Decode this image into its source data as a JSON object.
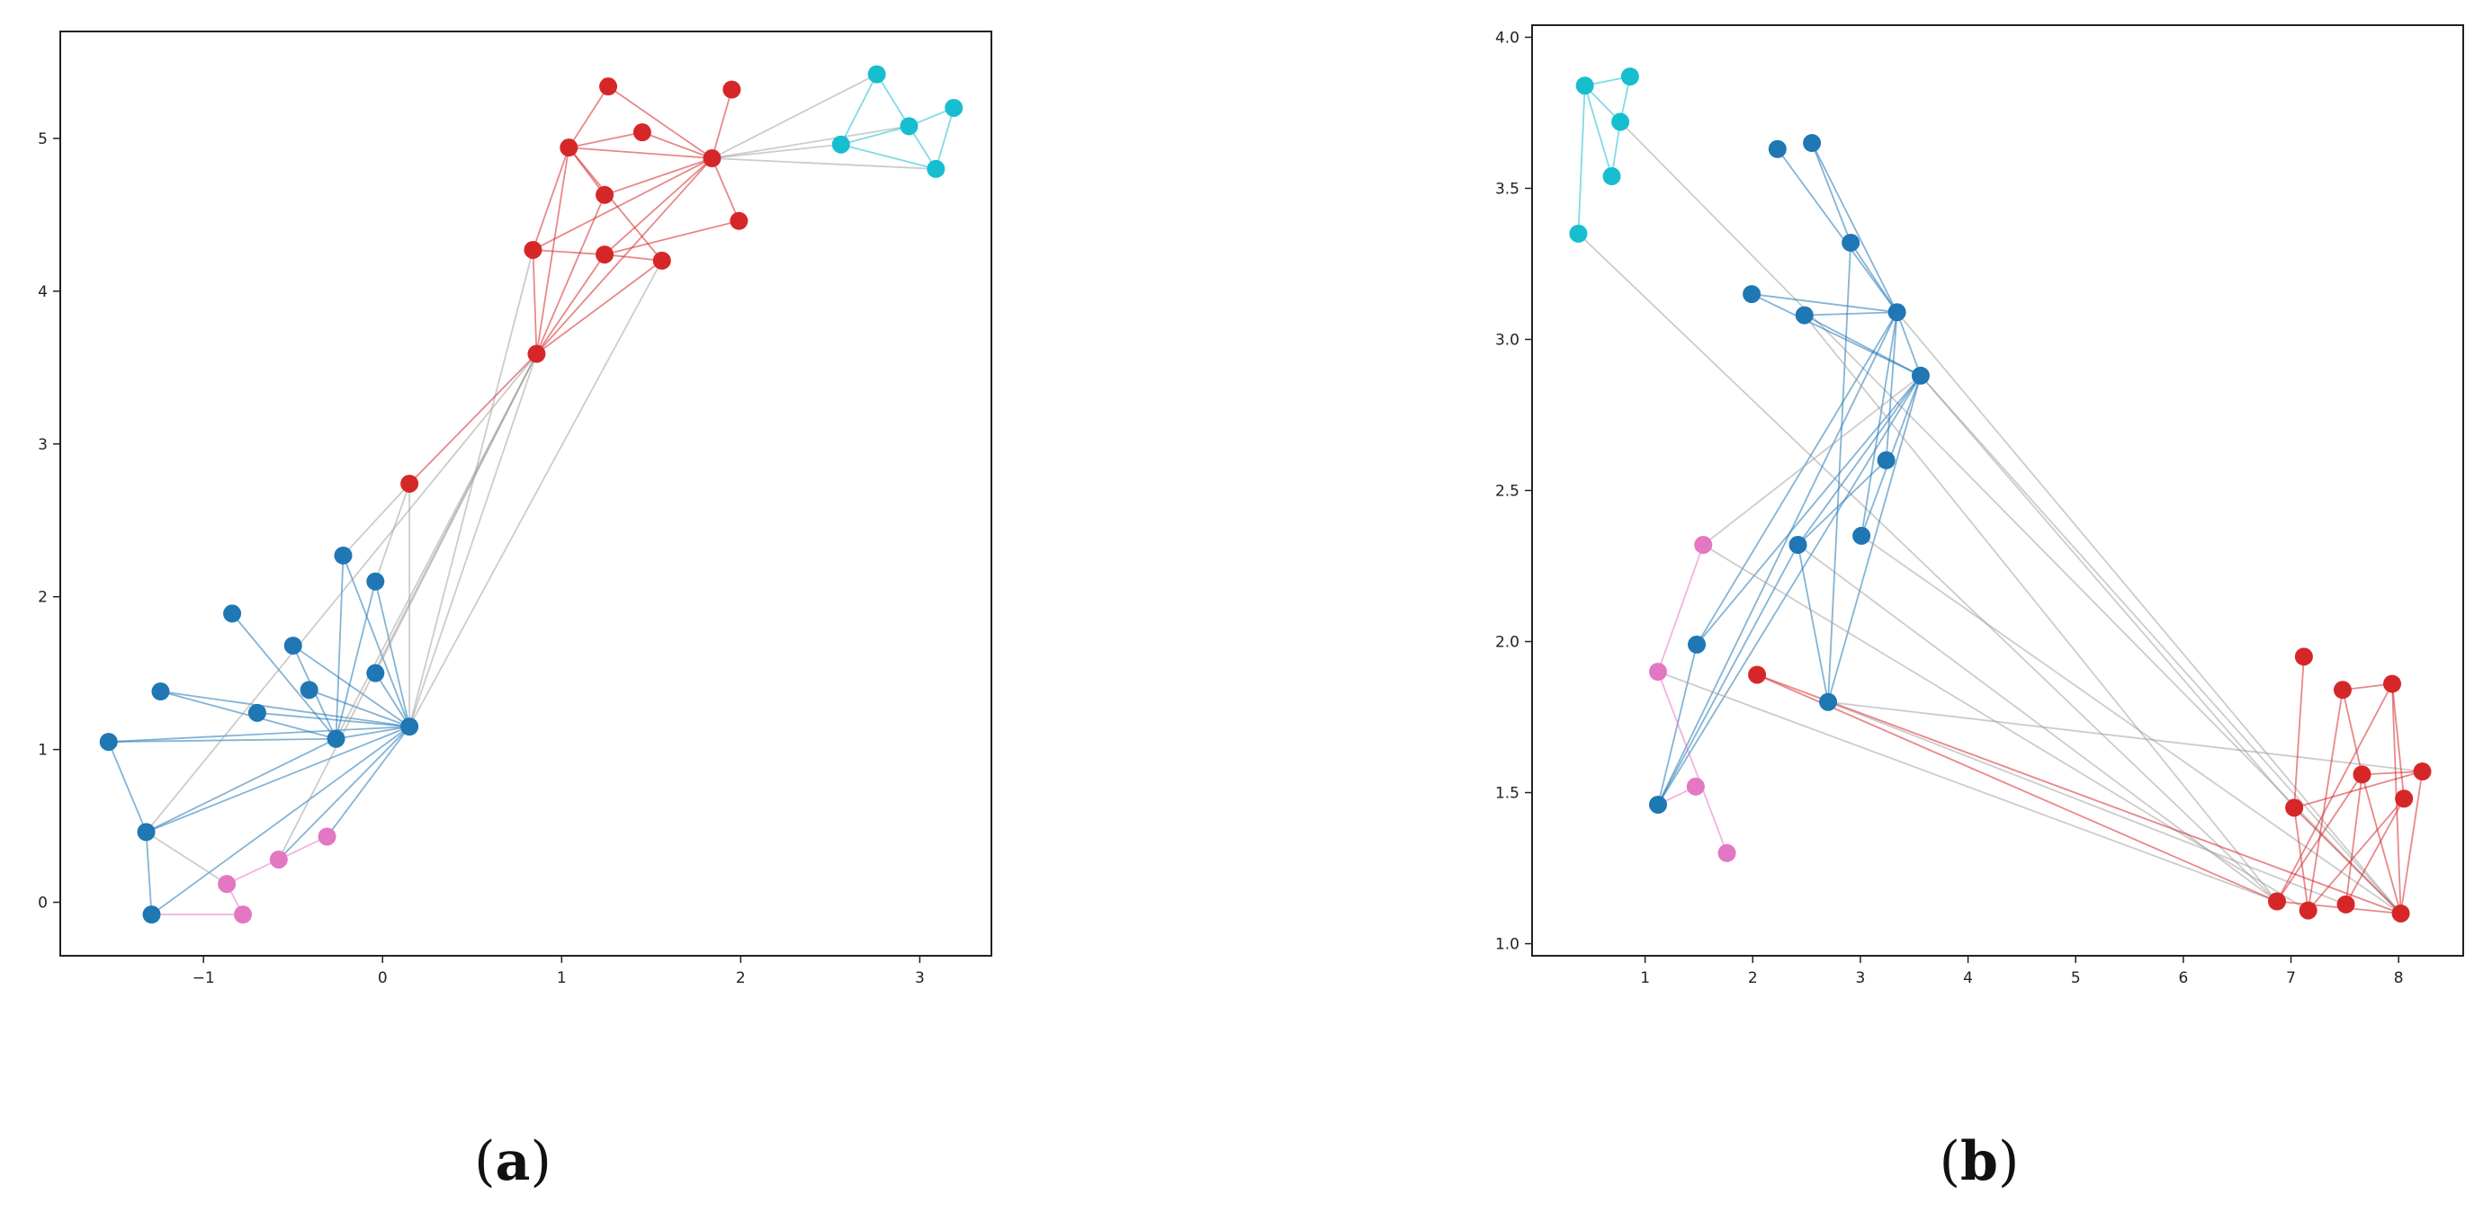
{
  "chart_data": [
    {
      "type": "scatter",
      "panel_label": "a",
      "xlim": [
        -1.8,
        3.4
      ],
      "ylim": [
        -0.35,
        5.7
      ],
      "xticks": [
        -1,
        0,
        1,
        2,
        3
      ],
      "xtick_labels": [
        "−1",
        "0",
        "1",
        "2",
        "3"
      ],
      "yticks": [
        0,
        1,
        2,
        3,
        4,
        5
      ],
      "ytick_labels": [
        "0",
        "1",
        "2",
        "3",
        "4",
        "5"
      ],
      "grid": false,
      "colors": {
        "blue": "#1f77b4",
        "red": "#d62728",
        "cyan": "#17becf",
        "pink": "#e377c2",
        "gray": "#999999"
      },
      "nodes": [
        {
          "id": "b1",
          "x": 0.15,
          "y": 1.15,
          "group": "blue"
        },
        {
          "id": "b2",
          "x": -0.26,
          "y": 1.07,
          "group": "blue"
        },
        {
          "id": "b3",
          "x": -1.53,
          "y": 1.05,
          "group": "blue"
        },
        {
          "id": "b4",
          "x": -1.24,
          "y": 1.38,
          "group": "blue"
        },
        {
          "id": "b5",
          "x": -0.7,
          "y": 1.24,
          "group": "blue"
        },
        {
          "id": "b6",
          "x": -0.41,
          "y": 1.39,
          "group": "blue"
        },
        {
          "id": "b7",
          "x": -0.5,
          "y": 1.68,
          "group": "blue"
        },
        {
          "id": "b8",
          "x": -0.84,
          "y": 1.89,
          "group": "blue"
        },
        {
          "id": "b9",
          "x": -0.22,
          "y": 2.27,
          "group": "blue"
        },
        {
          "id": "b10",
          "x": -0.04,
          "y": 2.1,
          "group": "blue"
        },
        {
          "id": "b11",
          "x": -0.04,
          "y": 1.5,
          "group": "blue"
        },
        {
          "id": "b12",
          "x": -1.32,
          "y": 0.46,
          "group": "blue"
        },
        {
          "id": "b13",
          "x": -1.29,
          "y": -0.08,
          "group": "blue"
        },
        {
          "id": "p1",
          "x": -0.87,
          "y": 0.12,
          "group": "pink"
        },
        {
          "id": "p2",
          "x": -0.78,
          "y": -0.08,
          "group": "pink"
        },
        {
          "id": "p3",
          "x": -0.58,
          "y": 0.28,
          "group": "pink"
        },
        {
          "id": "p4",
          "x": -0.31,
          "y": 0.43,
          "group": "pink"
        },
        {
          "id": "r1",
          "x": 0.15,
          "y": 2.74,
          "group": "red"
        },
        {
          "id": "r2",
          "x": 0.86,
          "y": 3.59,
          "group": "red"
        },
        {
          "id": "r3",
          "x": 0.84,
          "y": 4.27,
          "group": "red"
        },
        {
          "id": "r4",
          "x": 1.24,
          "y": 4.24,
          "group": "red"
        },
        {
          "id": "r5",
          "x": 1.56,
          "y": 4.2,
          "group": "red"
        },
        {
          "id": "r6",
          "x": 1.24,
          "y": 4.63,
          "group": "red"
        },
        {
          "id": "r7",
          "x": 1.04,
          "y": 4.94,
          "group": "red"
        },
        {
          "id": "r8",
          "x": 1.84,
          "y": 4.87,
          "group": "red"
        },
        {
          "id": "r9",
          "x": 1.45,
          "y": 5.04,
          "group": "red"
        },
        {
          "id": "r10",
          "x": 1.26,
          "y": 5.34,
          "group": "red"
        },
        {
          "id": "r11",
          "x": 1.95,
          "y": 5.32,
          "group": "red"
        },
        {
          "id": "r12",
          "x": 1.99,
          "y": 4.46,
          "group": "red"
        },
        {
          "id": "c1",
          "x": 2.76,
          "y": 5.42,
          "group": "cyan"
        },
        {
          "id": "c2",
          "x": 2.94,
          "y": 5.08,
          "group": "cyan"
        },
        {
          "id": "c3",
          "x": 3.19,
          "y": 5.2,
          "group": "cyan"
        },
        {
          "id": "c4",
          "x": 2.56,
          "y": 4.96,
          "group": "cyan"
        },
        {
          "id": "c5",
          "x": 3.09,
          "y": 4.8,
          "group": "cyan"
        }
      ],
      "edges": [
        [
          "b1",
          "b2",
          "blue"
        ],
        [
          "b1",
          "b3",
          "blue"
        ],
        [
          "b1",
          "b4",
          "blue"
        ],
        [
          "b1",
          "b5",
          "blue"
        ],
        [
          "b1",
          "b6",
          "blue"
        ],
        [
          "b1",
          "b7",
          "blue"
        ],
        [
          "b1",
          "b9",
          "blue"
        ],
        [
          "b1",
          "b10",
          "blue"
        ],
        [
          "b1",
          "b11",
          "blue"
        ],
        [
          "b1",
          "b12",
          "blue"
        ],
        [
          "b1",
          "b13",
          "blue"
        ],
        [
          "b2",
          "b3",
          "blue"
        ],
        [
          "b2",
          "b4",
          "blue"
        ],
        [
          "b2",
          "b8",
          "blue"
        ],
        [
          "b2",
          "b9",
          "blue"
        ],
        [
          "b2",
          "b10",
          "blue"
        ],
        [
          "b2",
          "b12",
          "blue"
        ],
        [
          "b2",
          "b7",
          "blue"
        ],
        [
          "b3",
          "b12",
          "blue"
        ],
        [
          "b12",
          "b13",
          "blue"
        ],
        [
          "b13",
          "p2",
          "pink"
        ],
        [
          "p1",
          "p2",
          "pink"
        ],
        [
          "p3",
          "p4",
          "pink"
        ],
        [
          "p1",
          "p3",
          "pink"
        ],
        [
          "b12",
          "p1",
          "gray"
        ],
        [
          "p3",
          "b1",
          "blue"
        ],
        [
          "p4",
          "b1",
          "blue"
        ],
        [
          "b1",
          "r1",
          "gray"
        ],
        [
          "b1",
          "r2",
          "gray"
        ],
        [
          "b11",
          "r2",
          "gray"
        ],
        [
          "b2",
          "r2",
          "gray"
        ],
        [
          "b10",
          "r1",
          "gray"
        ],
        [
          "b9",
          "r1",
          "gray"
        ],
        [
          "b12",
          "r2",
          "gray"
        ],
        [
          "p3",
          "r2",
          "gray"
        ],
        [
          "b1",
          "r5",
          "gray"
        ],
        [
          "b1",
          "r3",
          "gray"
        ],
        [
          "r1",
          "r2",
          "red"
        ],
        [
          "r2",
          "r3",
          "red"
        ],
        [
          "r2",
          "r4",
          "red"
        ],
        [
          "r2",
          "r5",
          "red"
        ],
        [
          "r2",
          "r7",
          "red"
        ],
        [
          "r2",
          "r8",
          "red"
        ],
        [
          "r2",
          "r6",
          "red"
        ],
        [
          "r3",
          "r4",
          "red"
        ],
        [
          "r4",
          "r5",
          "red"
        ],
        [
          "r3",
          "r7",
          "red"
        ],
        [
          "r7",
          "r6",
          "red"
        ],
        [
          "r7",
          "r8",
          "red"
        ],
        [
          "r7",
          "r10",
          "red"
        ],
        [
          "r7",
          "r9",
          "red"
        ],
        [
          "r7",
          "r5",
          "red"
        ],
        [
          "r8",
          "r9",
          "red"
        ],
        [
          "r8",
          "r10",
          "red"
        ],
        [
          "r8",
          "r11",
          "red"
        ],
        [
          "r8",
          "r12",
          "red"
        ],
        [
          "r8",
          "r4",
          "red"
        ],
        [
          "r8",
          "r6",
          "red"
        ],
        [
          "r8",
          "r3",
          "red"
        ],
        [
          "r4",
          "r12",
          "red"
        ],
        [
          "r8",
          "c1",
          "gray"
        ],
        [
          "r8",
          "c2",
          "gray"
        ],
        [
          "r8",
          "c4",
          "gray"
        ],
        [
          "r8",
          "c5",
          "gray"
        ],
        [
          "c1",
          "c2",
          "cyan"
        ],
        [
          "c1",
          "c4",
          "cyan"
        ],
        [
          "c2",
          "c3",
          "cyan"
        ],
        [
          "c3",
          "c5",
          "cyan"
        ],
        [
          "c2",
          "c5",
          "cyan"
        ],
        [
          "c4",
          "c2",
          "cyan"
        ],
        [
          "c4",
          "c5",
          "cyan"
        ]
      ]
    },
    {
      "type": "scatter",
      "panel_label": "b",
      "xlim": [
        -0.05,
        8.6
      ],
      "ylim": [
        0.96,
        4.04
      ],
      "xticks": [
        1,
        2,
        3,
        4,
        5,
        6,
        7,
        8
      ],
      "xtick_labels": [
        "1",
        "2",
        "3",
        "4",
        "5",
        "6",
        "7",
        "8"
      ],
      "yticks": [
        1.0,
        1.5,
        2.0,
        2.5,
        3.0,
        3.5,
        4.0
      ],
      "ytick_labels": [
        "1.0",
        "1.5",
        "2.0",
        "2.5",
        "3.0",
        "3.5",
        "4.0"
      ],
      "grid": false,
      "colors": {
        "blue": "#1f77b4",
        "red": "#d62728",
        "cyan": "#17becf",
        "pink": "#e377c2",
        "gray": "#999999"
      },
      "nodes": [
        {
          "id": "c1",
          "x": 0.44,
          "y": 3.84,
          "group": "cyan"
        },
        {
          "id": "c2",
          "x": 0.86,
          "y": 3.87,
          "group": "cyan"
        },
        {
          "id": "c3",
          "x": 0.77,
          "y": 3.72,
          "group": "cyan"
        },
        {
          "id": "c4",
          "x": 0.69,
          "y": 3.54,
          "group": "cyan"
        },
        {
          "id": "c5",
          "x": 0.38,
          "y": 3.35,
          "group": "cyan"
        },
        {
          "id": "b1",
          "x": 2.23,
          "y": 3.63,
          "group": "blue"
        },
        {
          "id": "b2",
          "x": 2.55,
          "y": 3.65,
          "group": "blue"
        },
        {
          "id": "b3",
          "x": 2.91,
          "y": 3.32,
          "group": "blue"
        },
        {
          "id": "b4",
          "x": 1.99,
          "y": 3.15,
          "group": "blue"
        },
        {
          "id": "b5",
          "x": 2.48,
          "y": 3.08,
          "group": "blue"
        },
        {
          "id": "b6",
          "x": 3.34,
          "y": 3.09,
          "group": "blue"
        },
        {
          "id": "b7",
          "x": 3.56,
          "y": 2.88,
          "group": "blue"
        },
        {
          "id": "b8",
          "x": 3.24,
          "y": 2.6,
          "group": "blue"
        },
        {
          "id": "b9",
          "x": 2.42,
          "y": 2.32,
          "group": "blue"
        },
        {
          "id": "b10",
          "x": 3.01,
          "y": 2.35,
          "group": "blue"
        },
        {
          "id": "b11",
          "x": 1.48,
          "y": 1.99,
          "group": "blue"
        },
        {
          "id": "b12",
          "x": 2.7,
          "y": 1.8,
          "group": "blue"
        },
        {
          "id": "b13",
          "x": 1.12,
          "y": 1.46,
          "group": "blue"
        },
        {
          "id": "p1",
          "x": 1.54,
          "y": 2.32,
          "group": "pink"
        },
        {
          "id": "p2",
          "x": 1.12,
          "y": 1.9,
          "group": "pink"
        },
        {
          "id": "p3",
          "x": 1.47,
          "y": 1.52,
          "group": "pink"
        },
        {
          "id": "p4",
          "x": 1.76,
          "y": 1.3,
          "group": "pink"
        },
        {
          "id": "r1",
          "x": 2.04,
          "y": 1.89,
          "group": "red"
        },
        {
          "id": "r2",
          "x": 7.12,
          "y": 1.95,
          "group": "red"
        },
        {
          "id": "r3",
          "x": 7.48,
          "y": 1.84,
          "group": "red"
        },
        {
          "id": "r4",
          "x": 7.94,
          "y": 1.86,
          "group": "red"
        },
        {
          "id": "r5",
          "x": 7.66,
          "y": 1.56,
          "group": "red"
        },
        {
          "id": "r6",
          "x": 8.22,
          "y": 1.57,
          "group": "red"
        },
        {
          "id": "r7",
          "x": 8.05,
          "y": 1.48,
          "group": "red"
        },
        {
          "id": "r8",
          "x": 7.03,
          "y": 1.45,
          "group": "red"
        },
        {
          "id": "r9",
          "x": 6.87,
          "y": 1.14,
          "group": "red"
        },
        {
          "id": "r10",
          "x": 7.16,
          "y": 1.11,
          "group": "red"
        },
        {
          "id": "r11",
          "x": 7.51,
          "y": 1.13,
          "group": "red"
        },
        {
          "id": "r12",
          "x": 8.02,
          "y": 1.1,
          "group": "red"
        }
      ],
      "edges": [
        [
          "c1",
          "c2",
          "cyan"
        ],
        [
          "c1",
          "c3",
          "cyan"
        ],
        [
          "c2",
          "c3",
          "cyan"
        ],
        [
          "c3",
          "c4",
          "cyan"
        ],
        [
          "c1",
          "c4",
          "cyan"
        ],
        [
          "c1",
          "c5",
          "cyan"
        ],
        [
          "c3",
          "r12",
          "gray"
        ],
        [
          "c5",
          "r9",
          "gray"
        ],
        [
          "b1",
          "b6",
          "blue"
        ],
        [
          "b2",
          "b6",
          "blue"
        ],
        [
          "b2",
          "b3",
          "blue"
        ],
        [
          "b3",
          "b6",
          "blue"
        ],
        [
          "b4",
          "b6",
          "blue"
        ],
        [
          "b5",
          "b6",
          "blue"
        ],
        [
          "b4",
          "b7",
          "blue"
        ],
        [
          "b5",
          "b7",
          "blue"
        ],
        [
          "b6",
          "b7",
          "blue"
        ],
        [
          "b6",
          "b8",
          "blue"
        ],
        [
          "b6",
          "b10",
          "blue"
        ],
        [
          "b7",
          "b10",
          "blue"
        ],
        [
          "b7",
          "b9",
          "blue"
        ],
        [
          "b8",
          "b9",
          "blue"
        ],
        [
          "b6",
          "b11",
          "blue"
        ],
        [
          "b7",
          "b11",
          "blue"
        ],
        [
          "b7",
          "b12",
          "blue"
        ],
        [
          "b6",
          "b13",
          "blue"
        ],
        [
          "b7",
          "b13",
          "blue"
        ],
        [
          "b9",
          "b13",
          "blue"
        ],
        [
          "b11",
          "b13",
          "blue"
        ],
        [
          "b3",
          "b12",
          "blue"
        ],
        [
          "b9",
          "b12",
          "blue"
        ],
        [
          "p1",
          "b7",
          "gray"
        ],
        [
          "p2",
          "p4",
          "pink"
        ],
        [
          "p2",
          "p1",
          "pink"
        ],
        [
          "p3",
          "b13",
          "pink"
        ],
        [
          "b6",
          "r12",
          "gray"
        ],
        [
          "b7",
          "r12",
          "gray"
        ],
        [
          "b7",
          "r8",
          "gray"
        ],
        [
          "b5",
          "r9",
          "gray"
        ],
        [
          "b9",
          "r9",
          "gray"
        ],
        [
          "b12",
          "r6",
          "gray"
        ],
        [
          "b12",
          "r11",
          "gray"
        ],
        [
          "p2",
          "r9",
          "gray"
        ],
        [
          "p1",
          "r10",
          "gray"
        ],
        [
          "b10",
          "r12",
          "gray"
        ],
        [
          "r1",
          "r9",
          "red"
        ],
        [
          "r1",
          "r12",
          "red"
        ],
        [
          "r2",
          "r8",
          "red"
        ],
        [
          "r3",
          "r5",
          "red"
        ],
        [
          "r3",
          "r4",
          "red"
        ],
        [
          "r4",
          "r7",
          "red"
        ],
        [
          "r4",
          "r9",
          "red"
        ],
        [
          "r5",
          "r12",
          "red"
        ],
        [
          "r5",
          "r11",
          "red"
        ],
        [
          "r5",
          "r9",
          "red"
        ],
        [
          "r6",
          "r12",
          "red"
        ],
        [
          "r6",
          "r8",
          "red"
        ],
        [
          "r7",
          "r10",
          "red"
        ],
        [
          "r7",
          "r11",
          "red"
        ],
        [
          "r8",
          "r12",
          "red"
        ],
        [
          "r8",
          "r10",
          "red"
        ],
        [
          "r9",
          "r12",
          "red"
        ],
        [
          "r3",
          "r10",
          "red"
        ],
        [
          "r5",
          "r6",
          "red"
        ],
        [
          "r4",
          "r12",
          "red"
        ]
      ]
    }
  ],
  "captions": {
    "a": {
      "open": "(",
      "letter": "a",
      "close": ")"
    },
    "b": {
      "open": "(",
      "letter": "b",
      "close": ")"
    }
  }
}
